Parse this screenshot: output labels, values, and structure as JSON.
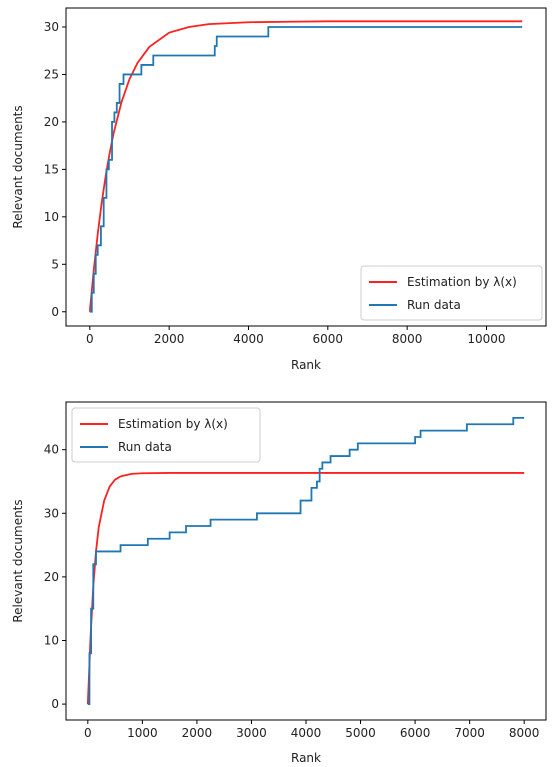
{
  "chart_data": [
    {
      "type": "line",
      "xlabel": "Rank",
      "ylabel": "Relevant documents",
      "xlim": [
        -600,
        11500
      ],
      "ylim": [
        -1.5,
        32
      ],
      "xticks": [
        0,
        2000,
        4000,
        6000,
        8000,
        10000
      ],
      "yticks": [
        0,
        5,
        10,
        15,
        20,
        25,
        30
      ],
      "legend": {
        "placement": "lower-right",
        "entries": [
          "Estimation by λ(x)",
          "Run data"
        ]
      },
      "series": [
        {
          "name": "Estimation by λ(x)",
          "color": "#ff2020",
          "kind": "curve",
          "x": [
            0,
            100,
            200,
            300,
            400,
            500,
            600,
            800,
            1000,
            1200,
            1500,
            2000,
            2500,
            3000,
            4000,
            5000,
            6000,
            8000,
            10000,
            10900
          ],
          "y": [
            0,
            4.4,
            8.2,
            11.5,
            14.3,
            16.7,
            18.8,
            22.1,
            24.5,
            26.2,
            27.9,
            29.4,
            30.0,
            30.3,
            30.5,
            30.55,
            30.6,
            30.6,
            30.6,
            30.6
          ]
        },
        {
          "name": "Run data",
          "color": "#1f77b4",
          "kind": "step",
          "x": [
            0,
            50,
            100,
            150,
            200,
            280,
            350,
            420,
            480,
            560,
            620,
            680,
            750,
            850,
            1100,
            1300,
            1500,
            1600,
            3150,
            3200,
            4500,
            10900
          ],
          "y": [
            0,
            2,
            4,
            6,
            7,
            9,
            12,
            15,
            16,
            20,
            21,
            22,
            24,
            25,
            25,
            26,
            26,
            27,
            28,
            29,
            30,
            30
          ]
        }
      ]
    },
    {
      "type": "line",
      "xlabel": "Rank",
      "ylabel": "Relevant documents",
      "xlim": [
        -400,
        8400
      ],
      "ylim": [
        -2.5,
        47.5
      ],
      "xticks": [
        0,
        1000,
        2000,
        3000,
        4000,
        5000,
        6000,
        7000,
        8000
      ],
      "yticks": [
        0,
        10,
        20,
        30,
        40
      ],
      "legend": {
        "placement": "top-left",
        "entries": [
          "Estimation by λ(x)",
          "Run data"
        ]
      },
      "series": [
        {
          "name": "Estimation by λ(x)",
          "color": "#ff2020",
          "kind": "curve",
          "x": [
            0,
            50,
            100,
            150,
            200,
            300,
            400,
            500,
            600,
            800,
            1000,
            1500,
            2000,
            4000,
            6000,
            8000
          ],
          "y": [
            0,
            10.5,
            18.5,
            24,
            27.8,
            32,
            34.2,
            35.3,
            35.8,
            36.2,
            36.3,
            36.35,
            36.35,
            36.35,
            36.35,
            36.35
          ]
        },
        {
          "name": "Run data",
          "color": "#1f77b4",
          "kind": "step",
          "x": [
            0,
            30,
            60,
            100,
            150,
            600,
            1100,
            1500,
            1800,
            2250,
            3100,
            3900,
            4000,
            4100,
            4200,
            4250,
            4300,
            4450,
            4800,
            4950,
            5000,
            6000,
            6100,
            6950,
            7800,
            8000
          ],
          "y": [
            0,
            8,
            15,
            22,
            24,
            25,
            26,
            27,
            28,
            29,
            30,
            32,
            32,
            34,
            35,
            37,
            38,
            39,
            40,
            41,
            41,
            42,
            43,
            44,
            45,
            45
          ]
        }
      ]
    }
  ]
}
